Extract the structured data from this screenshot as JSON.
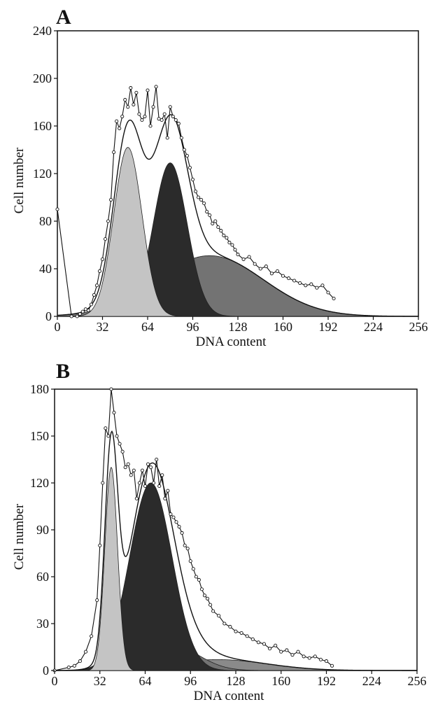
{
  "chart_data": [
    {
      "type": "area",
      "panel_label": "A",
      "xlabel": "DNA content",
      "ylabel": "Cell number",
      "xlim": [
        0,
        256
      ],
      "ylim": [
        0,
        240
      ],
      "xticks": [
        0,
        32,
        64,
        96,
        128,
        160,
        192,
        224,
        256
      ],
      "yticks": [
        0,
        40,
        80,
        120,
        160,
        200,
        240
      ],
      "colors": {
        "g1": "#c4c4c4",
        "s": "#2b2b2b",
        "g2": "#737373",
        "line": "#111111"
      },
      "components": [
        {
          "fill": "#c4c4c4",
          "mean": 50,
          "sd": 10,
          "amp": 142
        },
        {
          "fill": "#2b2b2b",
          "mean": 80,
          "sd": 12,
          "amp": 129
        },
        {
          "fill": "#737373",
          "mean": 108,
          "sd": 38,
          "amp": 51
        }
      ],
      "fit_peaks": [
        [
          52,
          186
        ],
        [
          73,
          170
        ]
      ],
      "observed": {
        "x": [
          0,
          10,
          14,
          16,
          18,
          20,
          22,
          24,
          26,
          28,
          30,
          32,
          34,
          36,
          38,
          40,
          42,
          44,
          46,
          48,
          50,
          52,
          54,
          56,
          58,
          60,
          62,
          64,
          66,
          68,
          70,
          72,
          74,
          76,
          78,
          80,
          82,
          84,
          86,
          88,
          90,
          92,
          94,
          96,
          98,
          100,
          102,
          104,
          106,
          108,
          110,
          112,
          114,
          116,
          118,
          120,
          122,
          124,
          126,
          128,
          132,
          136,
          140,
          144,
          148,
          152,
          156,
          160,
          164,
          168,
          172,
          176,
          180,
          184,
          188,
          192,
          196
        ],
        "y": [
          90,
          0,
          0,
          2,
          4,
          6,
          5,
          10,
          18,
          26,
          38,
          48,
          65,
          80,
          98,
          138,
          164,
          158,
          168,
          182,
          176,
          192,
          178,
          188,
          170,
          165,
          168,
          190,
          160,
          176,
          193,
          166,
          165,
          170,
          150,
          176,
          168,
          165,
          162,
          150,
          140,
          135,
          125,
          115,
          105,
          100,
          98,
          95,
          88,
          85,
          78,
          80,
          75,
          72,
          68,
          66,
          62,
          60,
          56,
          52,
          48,
          50,
          44,
          40,
          42,
          36,
          38,
          34,
          32,
          30,
          28,
          26,
          27,
          24,
          26,
          20,
          15
        ]
      }
    },
    {
      "type": "area",
      "panel_label": "B",
      "xlabel": "DNA content",
      "ylabel": "Cell number",
      "xlim": [
        0,
        256
      ],
      "ylim": [
        0,
        180
      ],
      "xticks": [
        0,
        32,
        64,
        96,
        128,
        160,
        192,
        224,
        256
      ],
      "yticks": [
        0,
        30,
        60,
        90,
        120,
        150,
        180
      ],
      "colors": {
        "g1": "#c4c4c4",
        "s": "#2b2b2b",
        "g2": "#737373",
        "line": "#111111"
      },
      "components": [
        {
          "fill": "#c4c4c4",
          "mean": 40,
          "sd": 4.5,
          "amp": 130
        },
        {
          "fill": "#2b2b2b",
          "mean": 68,
          "sd": 15,
          "amp": 120
        },
        {
          "fill": "#737373",
          "mean": 85,
          "sd": 18,
          "amp": 15
        },
        {
          "fill": "#8a8a8a",
          "mean": 115,
          "sd": 35,
          "amp": 7
        }
      ],
      "fit_peaks": [
        [
          40,
          178
        ],
        [
          68,
          135
        ]
      ],
      "observed": {
        "x": [
          0,
          10,
          14,
          18,
          22,
          26,
          30,
          32,
          34,
          36,
          38,
          40,
          42,
          44,
          46,
          48,
          50,
          52,
          54,
          56,
          58,
          60,
          62,
          64,
          66,
          68,
          70,
          72,
          74,
          76,
          78,
          80,
          82,
          84,
          86,
          88,
          90,
          92,
          94,
          96,
          98,
          100,
          102,
          104,
          106,
          108,
          110,
          112,
          116,
          120,
          124,
          128,
          132,
          136,
          140,
          144,
          148,
          152,
          156,
          160,
          164,
          168,
          172,
          176,
          180,
          184,
          188,
          192,
          196
        ],
        "y": [
          0,
          2,
          3,
          6,
          12,
          22,
          45,
          80,
          120,
          155,
          150,
          180,
          165,
          150,
          145,
          140,
          130,
          132,
          125,
          128,
          110,
          120,
          128,
          118,
          132,
          130,
          120,
          135,
          118,
          125,
          110,
          115,
          100,
          98,
          95,
          92,
          88,
          80,
          78,
          70,
          65,
          60,
          58,
          52,
          48,
          46,
          42,
          38,
          35,
          30,
          28,
          25,
          24,
          22,
          20,
          18,
          17,
          14,
          16,
          12,
          13,
          10,
          12,
          9,
          8,
          9,
          7,
          6,
          3
        ]
      }
    }
  ]
}
